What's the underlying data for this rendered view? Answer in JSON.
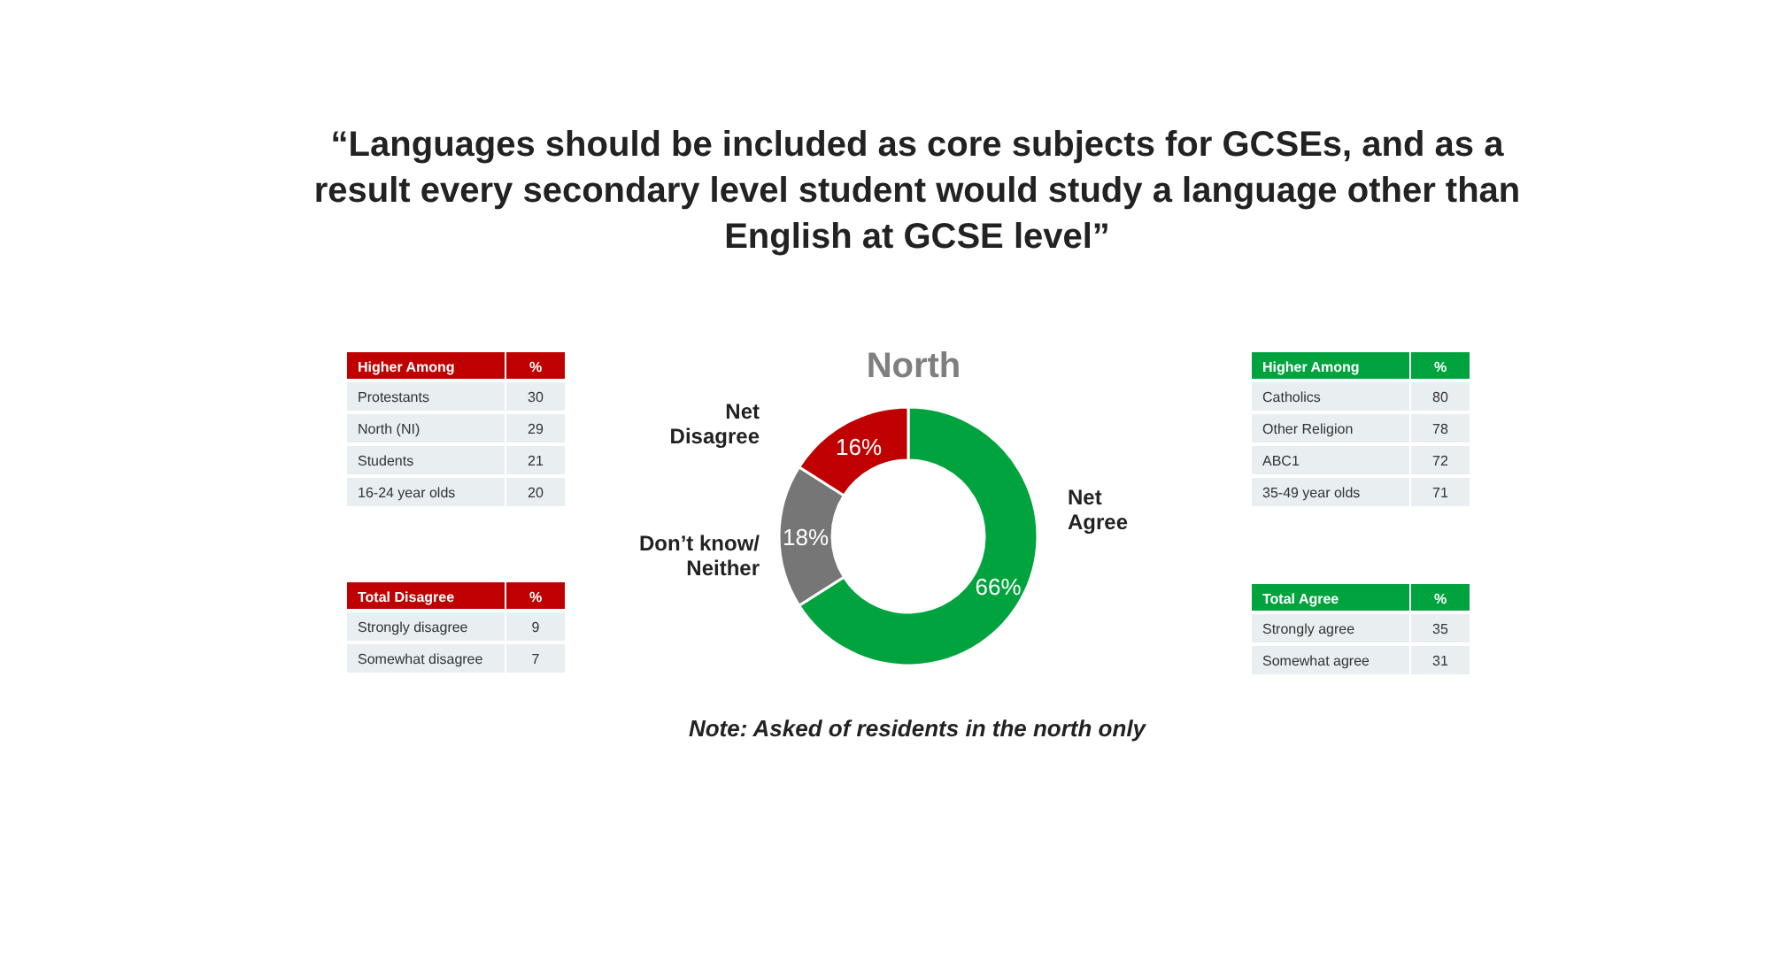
{
  "chart_data": [
    {
      "type": "donut",
      "title": "“Languages should be included as core subjects for GCSEs, and as a result every secondary level student would study a language other than English at GCSE level”",
      "subtitle": "North",
      "categories": [
        "Net\nAgree",
        "Don’t know/\nNeither",
        "Net\nDisagree"
      ],
      "values": [
        66,
        18,
        16
      ],
      "colors": [
        "#00a33d",
        "#767676",
        "#c00000"
      ],
      "value_labels": [
        "66%",
        "18%",
        "16%"
      ],
      "annotations": [
        "Note: Asked of residents in the north only"
      ]
    },
    {
      "type": "other",
      "title": "Higher Among",
      "xlabel": "%",
      "categories": [
        "Protestants",
        "North (NI)",
        "Students",
        "16-24 year olds"
      ],
      "values": [
        30,
        29,
        21,
        20
      ],
      "data_labels": true
    },
    {
      "type": "other",
      "title": "Higher Among",
      "xlabel": "%",
      "categories": [
        "Catholics",
        "Other Religion",
        "ABC1",
        "35-49 year olds"
      ],
      "values": [
        80,
        78,
        72,
        71
      ],
      "data_labels": true
    },
    {
      "type": "other",
      "title": "Total Disagree",
      "xlabel": "%",
      "categories": [
        "Strongly disagree",
        "Somewhat disagree"
      ],
      "values": [
        9,
        7
      ],
      "data_labels": true
    },
    {
      "type": "other",
      "title": "Total Agree",
      "xlabel": "%",
      "categories": [
        "Strongly agree",
        "Somewhat agree"
      ],
      "values": [
        35,
        31
      ],
      "data_labels": true
    }
  ]
}
